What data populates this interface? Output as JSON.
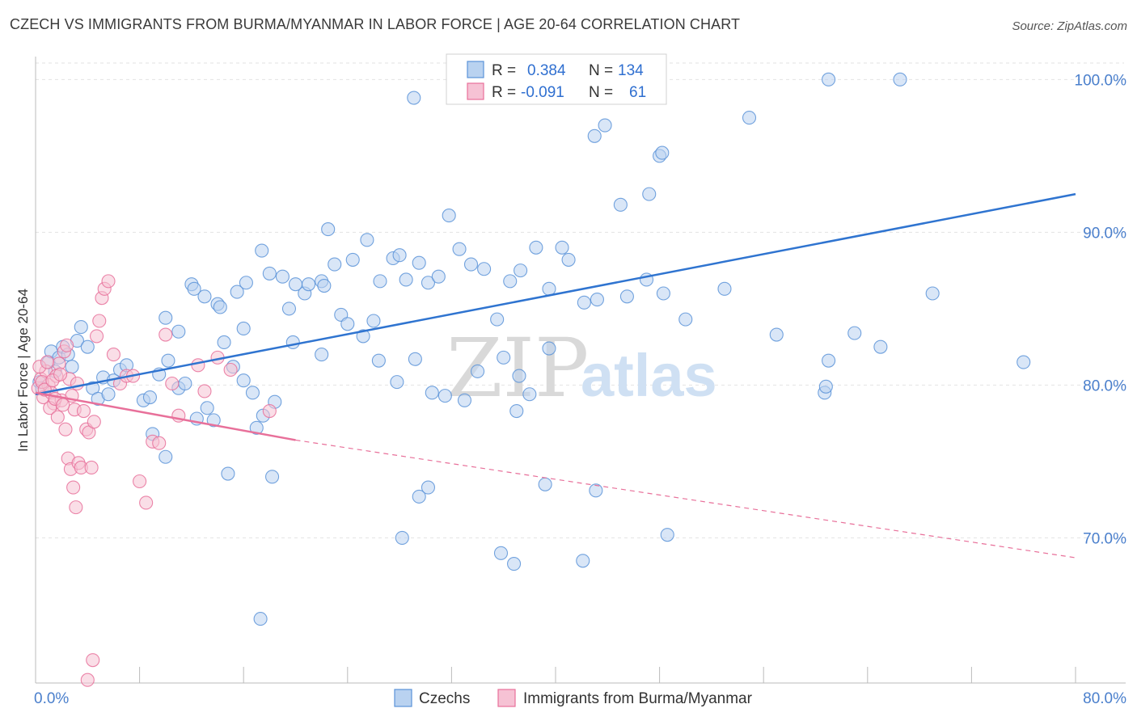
{
  "title": "CZECH VS IMMIGRANTS FROM BURMA/MYANMAR IN LABOR FORCE | AGE 20-64 CORRELATION CHART",
  "source": "Source: ZipAtlas.com",
  "watermark": {
    "zip": "ZIP",
    "atlas": "atlas"
  },
  "colors": {
    "blue": "#5b93d8",
    "blue_fill": "#b9d2f0",
    "pink": "#e8709a",
    "pink_fill": "#f6c2d4",
    "blue_line": "#2f74d0",
    "pink_line": "#e8709a"
  },
  "legend": {
    "rows": [
      {
        "r_label": "R =",
        "r_value": "0.384",
        "n_label": "N =",
        "n_value": "134"
      },
      {
        "r_label": "R =",
        "r_value": "-0.091",
        "n_label": "N =",
        "n_value": "61"
      }
    ]
  },
  "bottom_legend": [
    "Czechs",
    "Immigrants from Burma/Myanmar"
  ],
  "chart_data": {
    "type": "scatter",
    "title": "CZECH VS IMMIGRANTS FROM BURMA/MYANMAR IN LABOR FORCE | AGE 20-64 CORRELATION CHART",
    "xlabel": "",
    "ylabel": "In Labor Force | Age 20-64",
    "xlim": [
      0,
      80
    ],
    "ylim": [
      60.5,
      101.5
    ],
    "x_tick_labels": [
      "0.0%",
      "80.0%"
    ],
    "y_ticks": [
      70,
      80,
      90,
      100
    ],
    "y_tick_labels": [
      "70.0%",
      "80.0%",
      "90.0%",
      "100.0%"
    ],
    "grid": true,
    "legend_position": "top-center",
    "series": [
      {
        "name": "Czechs",
        "r": 0.384,
        "n": 134,
        "trend": {
          "x": [
            0,
            80
          ],
          "y": [
            79.4,
            92.5
          ]
        },
        "points": [
          [
            0.3,
            80.2
          ],
          [
            0.5,
            79.8
          ],
          [
            1.0,
            81.5
          ],
          [
            1.2,
            82.2
          ],
          [
            1.5,
            80.9
          ],
          [
            1.8,
            81.8
          ],
          [
            2.1,
            82.5
          ],
          [
            2.5,
            82.0
          ],
          [
            2.8,
            81.2
          ],
          [
            3.2,
            82.9
          ],
          [
            3.5,
            83.8
          ],
          [
            4.0,
            82.5
          ],
          [
            4.4,
            79.8
          ],
          [
            4.8,
            79.1
          ],
          [
            5.2,
            80.5
          ],
          [
            5.6,
            79.4
          ],
          [
            6.0,
            80.3
          ],
          [
            6.5,
            81.0
          ],
          [
            7.0,
            81.3
          ],
          [
            8.3,
            79.0
          ],
          [
            8.8,
            79.2
          ],
          [
            9.5,
            80.7
          ],
          [
            10.2,
            81.6
          ],
          [
            11.0,
            79.8
          ],
          [
            11.5,
            80.1
          ],
          [
            12.4,
            77.8
          ],
          [
            13.2,
            78.5
          ],
          [
            13.7,
            77.7
          ],
          [
            14.5,
            82.8
          ],
          [
            15.2,
            81.2
          ],
          [
            16.0,
            80.3
          ],
          [
            16.7,
            79.5
          ],
          [
            17.5,
            78.0
          ],
          [
            18.4,
            78.9
          ],
          [
            19.5,
            85.0
          ],
          [
            20.7,
            86.0
          ],
          [
            22.0,
            86.8
          ],
          [
            23.5,
            84.6
          ],
          [
            24.0,
            84.0
          ],
          [
            25.2,
            83.2
          ],
          [
            26.0,
            84.2
          ],
          [
            27.5,
            88.3
          ],
          [
            28.5,
            86.9
          ],
          [
            29.2,
            81.7
          ],
          [
            30.5,
            79.5
          ],
          [
            31.5,
            79.3
          ],
          [
            33.0,
            79.0
          ],
          [
            34.0,
            80.9
          ],
          [
            36.0,
            81.8
          ],
          [
            37.2,
            80.6
          ],
          [
            38.0,
            79.4
          ],
          [
            39.5,
            82.4
          ],
          [
            12.0,
            86.6
          ],
          [
            13.0,
            85.8
          ],
          [
            14.0,
            85.3
          ],
          [
            15.5,
            86.1
          ],
          [
            16.2,
            86.7
          ],
          [
            17.4,
            88.8
          ],
          [
            18.0,
            87.3
          ],
          [
            19.0,
            87.1
          ],
          [
            20.0,
            86.6
          ],
          [
            21.0,
            86.6
          ],
          [
            22.2,
            86.5
          ],
          [
            23.0,
            87.9
          ],
          [
            24.4,
            88.2
          ],
          [
            25.5,
            89.5
          ],
          [
            26.5,
            86.8
          ],
          [
            28.0,
            88.5
          ],
          [
            29.5,
            88.0
          ],
          [
            30.2,
            86.7
          ],
          [
            31.0,
            87.1
          ],
          [
            32.6,
            88.9
          ],
          [
            33.5,
            87.9
          ],
          [
            34.5,
            87.6
          ],
          [
            35.5,
            84.3
          ],
          [
            36.5,
            86.8
          ],
          [
            37.3,
            87.5
          ],
          [
            38.5,
            89.0
          ],
          [
            39.5,
            86.3
          ],
          [
            10.0,
            84.4
          ],
          [
            11.0,
            83.5
          ],
          [
            12.2,
            86.3
          ],
          [
            14.2,
            85.1
          ],
          [
            22.5,
            90.2
          ],
          [
            31.8,
            91.1
          ],
          [
            40.5,
            89.0
          ],
          [
            41.0,
            88.2
          ],
          [
            42.2,
            85.4
          ],
          [
            43.2,
            85.6
          ],
          [
            47.0,
            86.9
          ],
          [
            48.3,
            86.0
          ],
          [
            45.0,
            91.8
          ],
          [
            47.2,
            92.5
          ],
          [
            45.5,
            85.8
          ],
          [
            50.0,
            84.3
          ],
          [
            53.0,
            86.3
          ],
          [
            57.0,
            83.3
          ],
          [
            61.0,
            81.6
          ],
          [
            63.0,
            83.4
          ],
          [
            65.0,
            82.5
          ],
          [
            69.0,
            86.0
          ],
          [
            76.0,
            81.5
          ],
          [
            60.7,
            79.5
          ],
          [
            60.8,
            79.9
          ],
          [
            37.0,
            78.3
          ],
          [
            39.2,
            73.5
          ],
          [
            43.1,
            73.1
          ],
          [
            28.2,
            70.0
          ],
          [
            29.5,
            72.7
          ],
          [
            35.8,
            69.0
          ],
          [
            36.8,
            68.3
          ],
          [
            42.1,
            68.5
          ],
          [
            48.6,
            70.2
          ],
          [
            17.3,
            64.7
          ],
          [
            30.2,
            73.3
          ],
          [
            17.0,
            77.2
          ],
          [
            18.2,
            74.0
          ],
          [
            9.0,
            76.8
          ],
          [
            10.0,
            75.3
          ],
          [
            14.8,
            74.2
          ],
          [
            29.1,
            98.8
          ],
          [
            36.0,
            100.0
          ],
          [
            42.5,
            99.8
          ],
          [
            43.0,
            96.3
          ],
          [
            43.8,
            97.0
          ],
          [
            48.0,
            95.0
          ],
          [
            48.2,
            95.2
          ],
          [
            54.9,
            97.5
          ],
          [
            61.0,
            100.0
          ],
          [
            66.5,
            100.0
          ],
          [
            16.0,
            83.7
          ],
          [
            19.8,
            82.8
          ],
          [
            22.0,
            82.0
          ],
          [
            26.4,
            81.6
          ],
          [
            27.8,
            80.2
          ]
        ]
      },
      {
        "name": "Immigrants from Burma/Myanmar",
        "r": -0.091,
        "n": 61,
        "trend": {
          "x": [
            0,
            20
          ],
          "y": [
            79.5,
            76.4
          ]
        },
        "trend_extension": {
          "x": [
            20,
            80
          ],
          "y": [
            76.4,
            68.7
          ]
        },
        "points": [
          [
            0.2,
            79.8
          ],
          [
            0.4,
            80.4
          ],
          [
            0.6,
            79.2
          ],
          [
            0.8,
            80.9
          ],
          [
            1.0,
            80.0
          ],
          [
            1.2,
            79.5
          ],
          [
            1.4,
            78.8
          ],
          [
            1.6,
            80.6
          ],
          [
            1.8,
            81.4
          ],
          [
            2.0,
            79.0
          ],
          [
            2.2,
            82.2
          ],
          [
            2.4,
            82.6
          ],
          [
            2.6,
            80.4
          ],
          [
            2.8,
            79.3
          ],
          [
            3.0,
            78.4
          ],
          [
            3.2,
            80.1
          ],
          [
            0.3,
            81.2
          ],
          [
            0.5,
            80.2
          ],
          [
            0.7,
            79.7
          ],
          [
            0.9,
            81.5
          ],
          [
            1.1,
            78.5
          ],
          [
            1.3,
            80.3
          ],
          [
            1.5,
            79.1
          ],
          [
            1.7,
            77.9
          ],
          [
            1.9,
            80.7
          ],
          [
            2.1,
            78.7
          ],
          [
            2.3,
            77.1
          ],
          [
            2.5,
            75.2
          ],
          [
            2.7,
            74.5
          ],
          [
            2.9,
            73.3
          ],
          [
            3.1,
            72.0
          ],
          [
            3.3,
            74.9
          ],
          [
            3.5,
            74.6
          ],
          [
            3.7,
            78.3
          ],
          [
            3.9,
            77.1
          ],
          [
            4.1,
            76.9
          ],
          [
            4.3,
            74.6
          ],
          [
            4.5,
            77.6
          ],
          [
            4.7,
            83.2
          ],
          [
            4.9,
            84.2
          ],
          [
            5.1,
            85.7
          ],
          [
            5.3,
            86.3
          ],
          [
            5.6,
            86.8
          ],
          [
            6.0,
            82.0
          ],
          [
            6.5,
            80.1
          ],
          [
            7.0,
            80.6
          ],
          [
            7.5,
            80.6
          ],
          [
            8.0,
            73.7
          ],
          [
            8.5,
            72.3
          ],
          [
            9.0,
            76.3
          ],
          [
            9.5,
            76.2
          ],
          [
            10.0,
            83.3
          ],
          [
            10.5,
            80.1
          ],
          [
            11.0,
            78.0
          ],
          [
            12.5,
            81.3
          ],
          [
            13.0,
            79.6
          ],
          [
            14.0,
            81.8
          ],
          [
            15.0,
            81.0
          ],
          [
            18.0,
            78.3
          ],
          [
            4.4,
            62.0
          ],
          [
            4.0,
            60.7
          ]
        ]
      }
    ]
  }
}
